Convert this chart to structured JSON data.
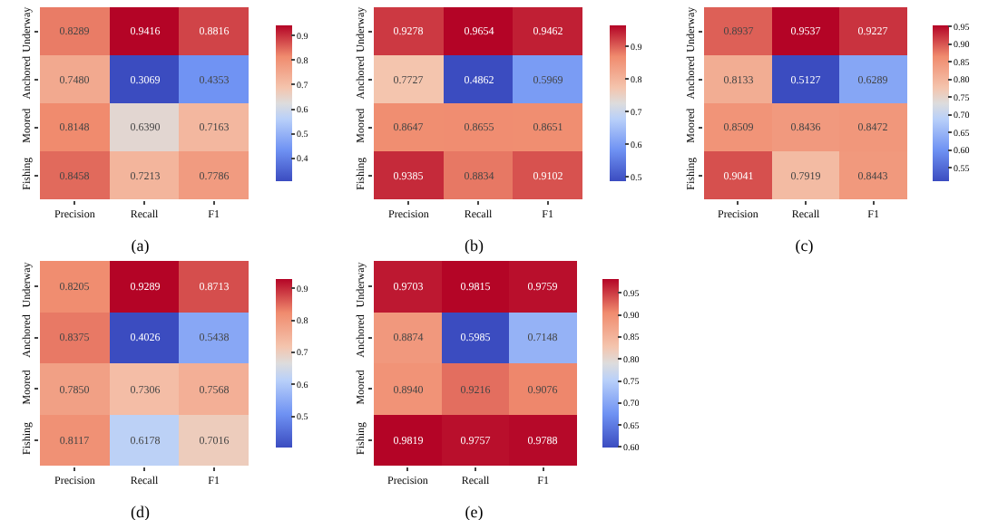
{
  "chart_data": [
    {
      "type": "heatmap",
      "title": "(a)",
      "categories": [
        "Precision",
        "Recall",
        "F1"
      ],
      "y_categories": [
        "Underway",
        "Anchored",
        "Moored",
        "Fishing"
      ],
      "cells": [
        [
          0.8289,
          0.9416,
          0.8816
        ],
        [
          0.748,
          0.3069,
          0.4353
        ],
        [
          0.8148,
          0.639,
          0.7163
        ],
        [
          0.8458,
          0.7213,
          0.7786
        ]
      ],
      "cell_labels": [
        [
          "0.8289",
          "0.9416",
          "0.8816"
        ],
        [
          "0.7480",
          "0.3069",
          "0.4353"
        ],
        [
          "0.8148",
          "0.6390",
          "0.7163"
        ],
        [
          "0.8458",
          "0.7213",
          "0.7786"
        ]
      ],
      "clim": [
        0.3069,
        0.9416
      ],
      "cticks": [
        0.4,
        0.5,
        0.6,
        0.7,
        0.8,
        0.9
      ],
      "data_labels": true
    },
    {
      "type": "heatmap",
      "title": "(b)",
      "categories": [
        "Precision",
        "Recall",
        "F1"
      ],
      "y_categories": [
        "Underway",
        "Anchored",
        "Moored",
        "Fishing"
      ],
      "cells": [
        [
          0.9278,
          0.9654,
          0.9462
        ],
        [
          0.7727,
          0.4862,
          0.5969
        ],
        [
          0.8647,
          0.8655,
          0.8651
        ],
        [
          0.9385,
          0.8834,
          0.9102
        ]
      ],
      "cell_labels": [
        [
          "0.9278",
          "0.9654",
          "0.9462"
        ],
        [
          "0.7727",
          "0.4862",
          "0.5969"
        ],
        [
          "0.8647",
          "0.8655",
          "0.8651"
        ],
        [
          "0.9385",
          "0.8834",
          "0.9102"
        ]
      ],
      "clim": [
        0.4862,
        0.9654
      ],
      "cticks": [
        0.5,
        0.6,
        0.7,
        0.8,
        0.9
      ],
      "data_labels": true
    },
    {
      "type": "heatmap",
      "title": "(c)",
      "categories": [
        "Precision",
        "Recall",
        "F1"
      ],
      "y_categories": [
        "Underway",
        "Anchored",
        "Moored",
        "Fishing"
      ],
      "cells": [
        [
          0.8937,
          0.9537,
          0.9227
        ],
        [
          0.8133,
          0.5127,
          0.6289
        ],
        [
          0.8509,
          0.8436,
          0.8472
        ],
        [
          0.9041,
          0.7919,
          0.8443
        ]
      ],
      "cell_labels": [
        [
          "0.8937",
          "0.9537",
          "0.9227"
        ],
        [
          "0.8133",
          "0.5127",
          "0.6289"
        ],
        [
          "0.8509",
          "0.8436",
          "0.8472"
        ],
        [
          "0.9041",
          "0.7919",
          "0.8443"
        ]
      ],
      "clim": [
        0.5127,
        0.9537
      ],
      "cticks": [
        0.55,
        {
          "value": 0.6,
          "label": "0.60"
        },
        0.65,
        {
          "value": 0.7,
          "label": "0.70"
        },
        0.75,
        {
          "value": 0.8,
          "label": "0.80"
        },
        0.85,
        {
          "value": 0.9,
          "label": "0.90"
        },
        0.95
      ],
      "data_labels": true
    },
    {
      "type": "heatmap",
      "title": "(d)",
      "categories": [
        "Precision",
        "Recall",
        "F1"
      ],
      "y_categories": [
        "Underway",
        "Anchored",
        "Moored",
        "Fishing"
      ],
      "cells": [
        [
          0.8205,
          0.9289,
          0.8713
        ],
        [
          0.8375,
          0.4026,
          0.5438
        ],
        [
          0.785,
          0.7306,
          0.7568
        ],
        [
          0.8117,
          0.6178,
          0.7016
        ]
      ],
      "cell_labels": [
        [
          "0.8205",
          "0.9289",
          "0.8713"
        ],
        [
          "0.8375",
          "0.4026",
          "0.5438"
        ],
        [
          "0.7850",
          "0.7306",
          "0.7568"
        ],
        [
          "0.8117",
          "0.6178",
          "0.7016"
        ]
      ],
      "clim": [
        0.4026,
        0.9289
      ],
      "cticks": [
        0.5,
        0.6,
        0.7,
        0.8,
        0.9
      ],
      "data_labels": true
    },
    {
      "type": "heatmap",
      "title": "(e)",
      "categories": [
        "Precision",
        "Recall",
        "F1"
      ],
      "y_categories": [
        "Underway",
        "Anchored",
        "Moored",
        "Fishing"
      ],
      "cells": [
        [
          0.9703,
          0.9815,
          0.9759
        ],
        [
          0.8874,
          0.5985,
          0.7148
        ],
        [
          0.894,
          0.9216,
          0.9076
        ],
        [
          0.9819,
          0.9757,
          0.9788
        ]
      ],
      "cell_labels": [
        [
          "0.9703",
          "0.9815",
          "0.9759"
        ],
        [
          "0.8874",
          "0.5985",
          "0.7148"
        ],
        [
          "0.8940",
          "0.9216",
          "0.9076"
        ],
        [
          "0.9819",
          "0.9757",
          "0.9788"
        ]
      ],
      "clim": [
        0.5985,
        0.9819
      ],
      "cticks": [
        {
          "value": 0.6,
          "label": "0.60"
        },
        0.65,
        {
          "value": 0.7,
          "label": "0.70"
        },
        0.75,
        {
          "value": 0.8,
          "label": "0.80"
        },
        0.85,
        {
          "value": 0.9,
          "label": "0.90"
        },
        0.95
      ],
      "data_labels": true
    }
  ]
}
